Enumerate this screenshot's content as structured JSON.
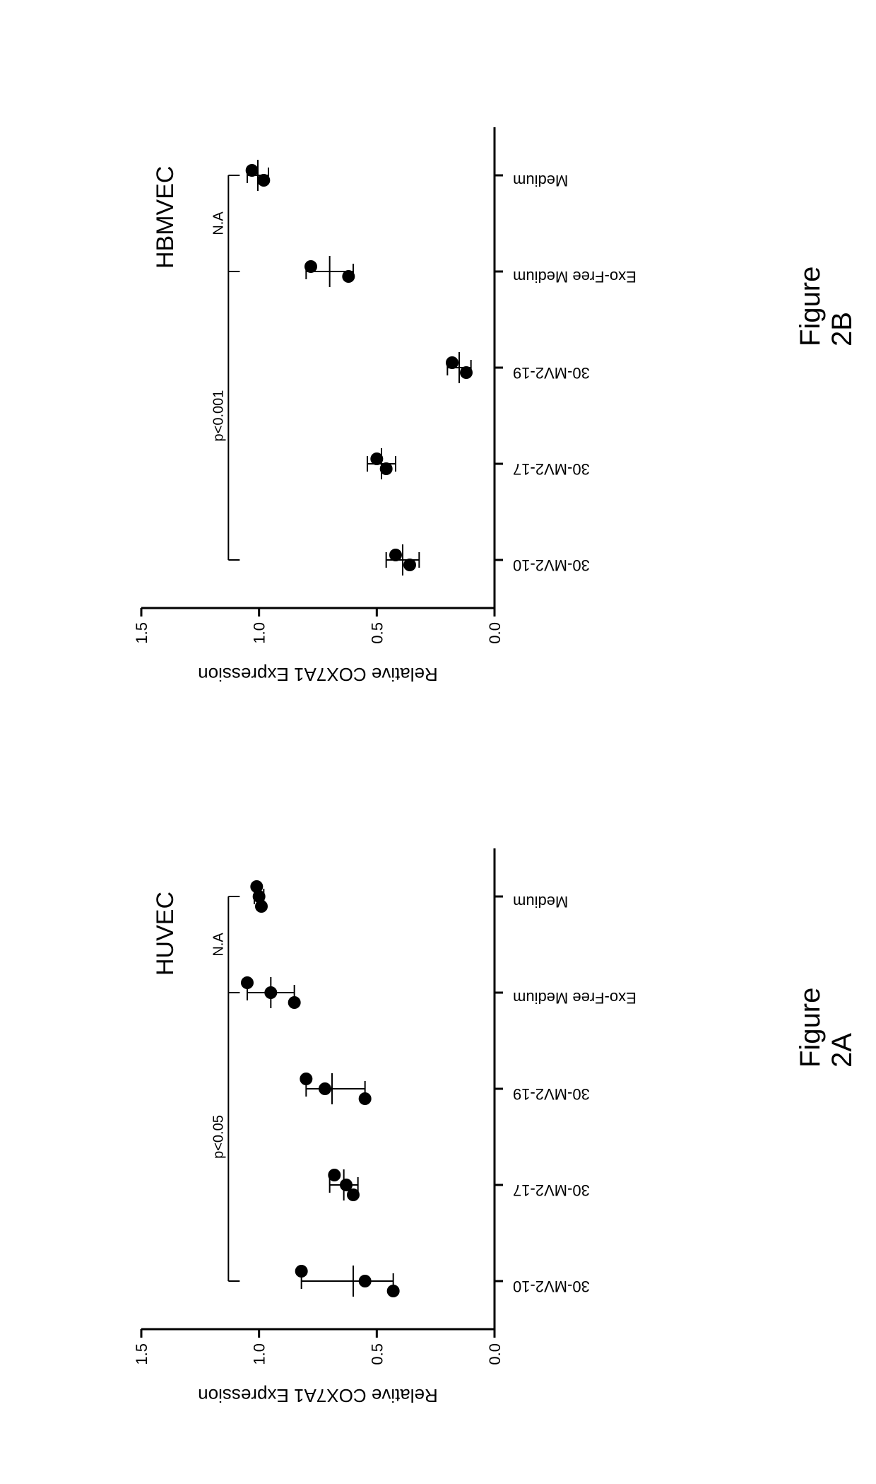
{
  "colors": {
    "fg": "#000000",
    "bg": "#ffffff"
  },
  "typography": {
    "axis_label_fontsize": 26,
    "tick_fontsize": 22,
    "title_fontsize": 34,
    "figure_label_fontsize": 40,
    "annotation_fontsize": 20,
    "font_family": "Arial"
  },
  "figure_a": {
    "title": "HUVEC",
    "figure_label": "Figure 2A",
    "type": "scatter",
    "ylabel": "Relative COX7A1 Expression",
    "ylim": [
      0.0,
      1.5
    ],
    "ytick_step": 0.5,
    "categories": [
      "30-MV2-10",
      "30-MV2-17",
      "30-MV2-19",
      "Exo-Free Medium",
      "Medium"
    ],
    "points": [
      [
        0.43,
        0.55,
        0.82
      ],
      [
        0.6,
        0.63,
        0.68
      ],
      [
        0.55,
        0.72,
        0.8
      ],
      [
        0.85,
        0.95,
        1.05
      ],
      [
        0.99,
        1.0,
        1.01
      ]
    ],
    "error_mean": [
      0.6,
      0.64,
      0.69,
      0.95,
      1.0
    ],
    "error_low": [
      0.43,
      0.58,
      0.55,
      0.85,
      0.98
    ],
    "error_high": [
      0.82,
      0.7,
      0.8,
      1.05,
      1.02
    ],
    "marker_size": 9,
    "marker_color": "#000000",
    "axis_line_width": 3,
    "error_line_width": 2,
    "sig_brackets": [
      {
        "label": "p<0.05",
        "from": 0,
        "to": 3,
        "level": 1.13
      },
      {
        "label": "N.A",
        "from": 3,
        "to": 4,
        "level": 1.13
      }
    ]
  },
  "figure_b": {
    "title": "HBMVEC",
    "figure_label": "Figure 2B",
    "type": "scatter",
    "ylabel": "Relative COX7A1 Expression",
    "ylim": [
      0.0,
      1.5
    ],
    "ytick_step": 0.5,
    "categories": [
      "30-MV2-10",
      "30-MV2-17",
      "30-MV2-19",
      "Exo-Free Medium",
      "Medium"
    ],
    "points": [
      [
        0.36,
        0.42
      ],
      [
        0.46,
        0.5
      ],
      [
        0.12,
        0.18
      ],
      [
        0.62,
        0.78
      ],
      [
        0.98,
        1.03
      ]
    ],
    "error_mean": [
      0.39,
      0.48,
      0.15,
      0.7,
      1.005
    ],
    "error_low": [
      0.32,
      0.42,
      0.1,
      0.6,
      0.96
    ],
    "error_high": [
      0.46,
      0.54,
      0.2,
      0.8,
      1.05
    ],
    "marker_size": 9,
    "marker_color": "#000000",
    "axis_line_width": 3,
    "error_line_width": 2,
    "sig_brackets": [
      {
        "label": "p<0.001",
        "from": 0,
        "to": 3,
        "level": 1.13
      },
      {
        "label": "N.A",
        "from": 3,
        "to": 4,
        "level": 1.13
      }
    ]
  }
}
